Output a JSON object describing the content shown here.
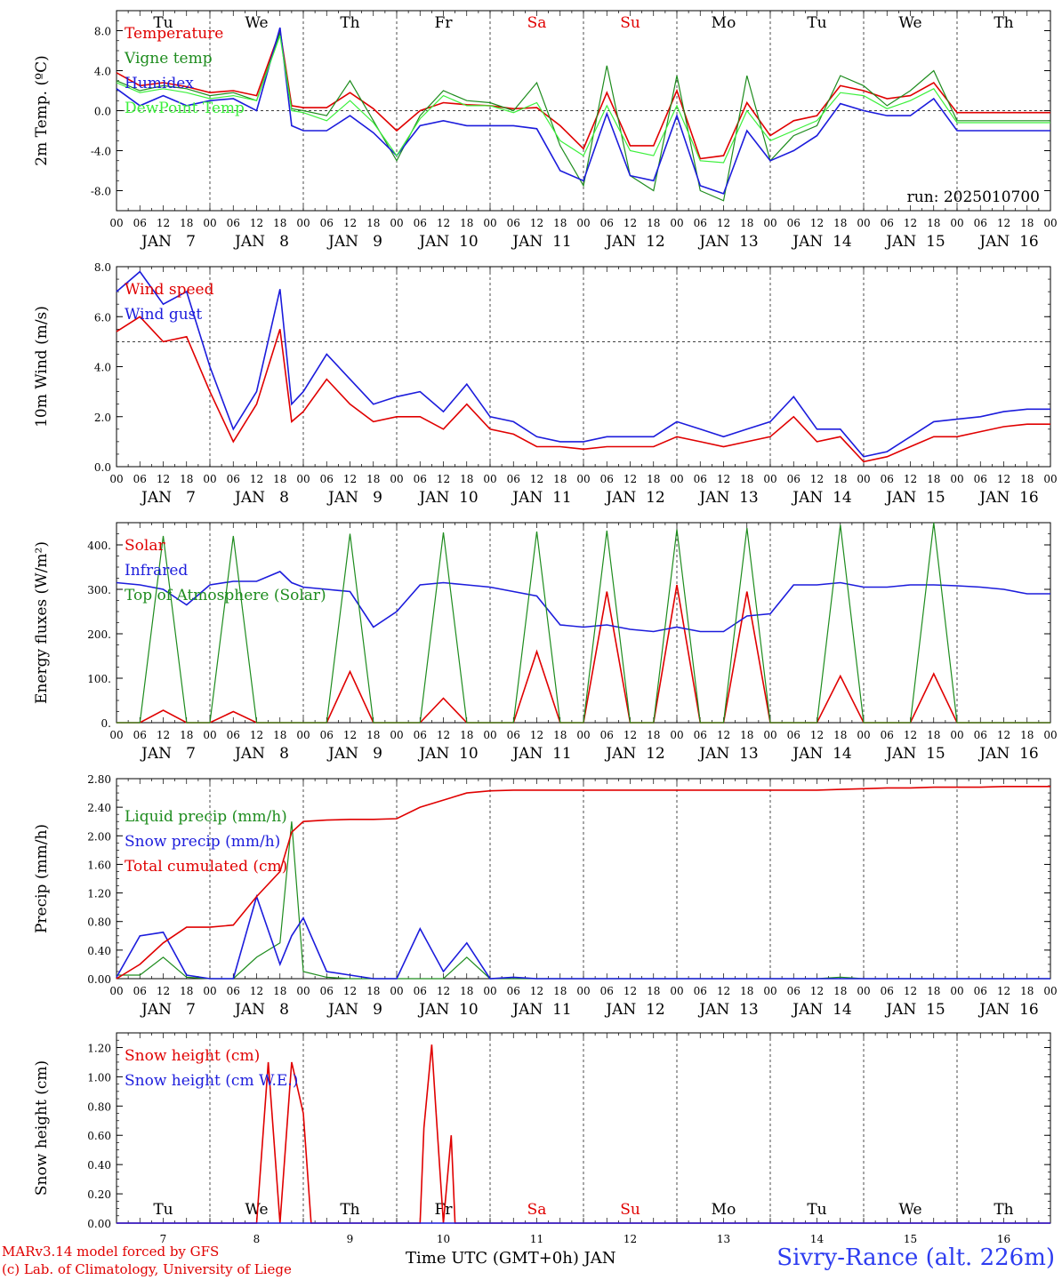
{
  "footer": {
    "model": "MARv3.14 model forced by GFS",
    "copyright": "(c) Lab. of Climatology, University of Liege",
    "xlabel": "Time UTC (GMT+0h) JAN",
    "site": "Sivry-Rance (alt. 226m)"
  },
  "run_label": "run: 2025010700",
  "days_top": [
    "Tu",
    "We",
    "Th",
    "Fr",
    "Sa",
    "Su",
    "Mo",
    "Tu",
    "We",
    "Th"
  ],
  "weekend_days": [
    "Sa",
    "Su"
  ],
  "dates_bottom": [
    "7",
    "8",
    "9",
    "10",
    "11",
    "12",
    "13",
    "14",
    "15",
    "16"
  ],
  "date_labels": [
    "JAN   7",
    "JAN   8",
    "JAN   9",
    "JAN  10",
    "JAN  11",
    "JAN  12",
    "JAN  13",
    "JAN  14",
    "JAN  15",
    "JAN  16"
  ],
  "hour_labels": [
    "00",
    "06",
    "12",
    "18"
  ],
  "colors": {
    "red": "#e00000",
    "green": "#1e8c1e",
    "blue": "#1c1cdc",
    "lightgreen": "#3cf03c",
    "weekend": "#e00000"
  },
  "chart_data": [
    {
      "type": "line",
      "ylabel": "2m Temp. (ºC)",
      "ylim": [
        -10,
        10
      ],
      "yticks": [
        "8.0",
        "4.0",
        "0.0",
        "-4.0",
        "-8.0"
      ],
      "ytick_values": [
        8,
        4,
        0,
        -4,
        -8
      ],
      "ref_line": 0,
      "x_hours_from_jan7_00": [
        0,
        6,
        12,
        18,
        24,
        30,
        36,
        42,
        45,
        48,
        54,
        60,
        66,
        72,
        78,
        84,
        90,
        96,
        102,
        108,
        114,
        120,
        126,
        132,
        138,
        144,
        150,
        156,
        162,
        168,
        174,
        180,
        186,
        192,
        198,
        204,
        210,
        216,
        222,
        228,
        234,
        240
      ],
      "series": [
        {
          "name": "Temperature",
          "color": "red",
          "values": [
            3.8,
            2.5,
            2.8,
            2.4,
            1.8,
            2.0,
            1.5,
            8.0,
            0.5,
            0.3,
            0.3,
            1.8,
            0.2,
            -2.0,
            0.0,
            0.8,
            0.6,
            0.5,
            0.2,
            0.3,
            -1.5,
            -3.8,
            1.8,
            -3.5,
            -3.5,
            2.0,
            -4.8,
            -4.5,
            0.8,
            -2.5,
            -1.0,
            -0.5,
            2.5,
            2.0,
            1.2,
            1.5,
            2.8,
            -0.2,
            -0.2,
            -0.2,
            -0.2,
            -0.2
          ]
        },
        {
          "name": "Vigne temp",
          "color": "green",
          "values": [
            3.0,
            2.0,
            2.5,
            2.2,
            1.5,
            1.8,
            1.0,
            7.8,
            0.2,
            0.0,
            -0.5,
            3.0,
            -1.0,
            -5.0,
            -0.5,
            2.0,
            1.0,
            0.8,
            0.0,
            2.8,
            -3.5,
            -7.5,
            4.5,
            -6.5,
            -8.0,
            3.5,
            -8.0,
            -9.0,
            3.5,
            -5.0,
            -2.5,
            -1.5,
            3.5,
            2.5,
            0.5,
            2.0,
            4.0,
            -1.0,
            -1.0,
            -1.0,
            -1.0,
            -1.0
          ]
        },
        {
          "name": "Humidex",
          "color": "blue",
          "values": [
            2.2,
            0.5,
            1.5,
            0.5,
            1.0,
            1.2,
            0.0,
            8.3,
            -1.5,
            -2.0,
            -2.0,
            -0.5,
            -2.2,
            -4.5,
            -1.5,
            -1.0,
            -1.5,
            -1.5,
            -1.5,
            -1.8,
            -6.0,
            -7.0,
            -0.3,
            -6.5,
            -7.0,
            -0.5,
            -7.5,
            -8.3,
            -2.0,
            -5.0,
            -4.0,
            -2.5,
            0.7,
            0.0,
            -0.5,
            -0.5,
            1.2,
            -2.0,
            -2.0,
            -2.0,
            -2.0,
            -2.0
          ]
        },
        {
          "name": "DewPoint Temp",
          "color": "lightgreen",
          "values": [
            2.8,
            1.8,
            2.2,
            1.8,
            1.2,
            1.5,
            1.0,
            7.5,
            0.0,
            -0.2,
            -1.0,
            1.0,
            -1.2,
            -4.5,
            -0.8,
            1.5,
            0.5,
            0.5,
            -0.2,
            0.8,
            -3.0,
            -4.5,
            0.5,
            -4.0,
            -4.5,
            0.5,
            -5.0,
            -5.2,
            0.0,
            -3.0,
            -2.0,
            -1.0,
            1.8,
            1.5,
            0.2,
            1.0,
            2.2,
            -1.2,
            -1.2,
            -1.2,
            -1.2,
            -1.2
          ]
        }
      ]
    },
    {
      "type": "line",
      "ylabel": "10m Wind (m/s)",
      "ylim": [
        0,
        8
      ],
      "yticks": [
        "8.0",
        "6.0",
        "4.0",
        "2.0",
        "0.0"
      ],
      "ytick_values": [
        8,
        6,
        4,
        2,
        0
      ],
      "ref_line": 5,
      "x_hours_from_jan7_00": [
        0,
        6,
        12,
        18,
        24,
        30,
        36,
        42,
        45,
        48,
        54,
        60,
        66,
        72,
        78,
        84,
        90,
        96,
        102,
        108,
        114,
        120,
        126,
        132,
        138,
        144,
        150,
        156,
        162,
        168,
        174,
        180,
        186,
        192,
        198,
        204,
        210,
        216,
        222,
        228,
        234,
        240
      ],
      "series": [
        {
          "name": "Wind speed",
          "color": "red",
          "values": [
            5.4,
            6.0,
            5.0,
            5.2,
            3.0,
            1.0,
            2.5,
            5.5,
            1.8,
            2.2,
            3.5,
            2.5,
            1.8,
            2.0,
            2.0,
            1.5,
            2.5,
            1.5,
            1.3,
            0.8,
            0.8,
            0.7,
            0.8,
            0.8,
            0.8,
            1.2,
            1.0,
            0.8,
            1.0,
            1.2,
            2.0,
            1.0,
            1.2,
            0.2,
            0.4,
            0.8,
            1.2,
            1.2,
            1.4,
            1.6,
            1.7,
            1.7
          ]
        },
        {
          "name": "Wind gust",
          "color": "blue",
          "values": [
            7.0,
            7.8,
            6.5,
            7.0,
            4.0,
            1.5,
            3.0,
            7.1,
            2.5,
            3.0,
            4.5,
            3.5,
            2.5,
            2.8,
            3.0,
            2.2,
            3.3,
            2.0,
            1.8,
            1.2,
            1.0,
            1.0,
            1.2,
            1.2,
            1.2,
            1.8,
            1.5,
            1.2,
            1.5,
            1.8,
            2.8,
            1.5,
            1.5,
            0.4,
            0.6,
            1.2,
            1.8,
            1.9,
            2.0,
            2.2,
            2.3,
            2.3
          ]
        }
      ]
    },
    {
      "type": "line",
      "ylabel": "Energy fluxes (W/m²)",
      "ylim": [
        0,
        450
      ],
      "yticks": [
        "400.",
        "300.",
        "200.",
        "100.",
        "0."
      ],
      "ytick_values": [
        400,
        300,
        200,
        100,
        0
      ],
      "ref_line": null,
      "x_hours_from_jan7_00": [
        0,
        6,
        12,
        18,
        24,
        30,
        36,
        42,
        45,
        48,
        54,
        60,
        66,
        72,
        78,
        84,
        90,
        96,
        102,
        108,
        114,
        120,
        126,
        132,
        138,
        144,
        150,
        156,
        162,
        168,
        174,
        180,
        186,
        192,
        198,
        204,
        210,
        216,
        222,
        228,
        234,
        240
      ],
      "series": [
        {
          "name": "Solar",
          "color": "red",
          "values": [
            0,
            0,
            28,
            0,
            0,
            25,
            0,
            0,
            0,
            0,
            0,
            115,
            0,
            0,
            0,
            55,
            0,
            0,
            0,
            160,
            0,
            0,
            295,
            0,
            0,
            310,
            0,
            0,
            295,
            0,
            0,
            0,
            105,
            0,
            0,
            0,
            110,
            0,
            0,
            0,
            0,
            0
          ]
        },
        {
          "name": "Infrared",
          "color": "blue",
          "values": [
            315,
            310,
            300,
            265,
            310,
            318,
            318,
            340,
            315,
            305,
            300,
            295,
            215,
            250,
            310,
            315,
            310,
            305,
            295,
            285,
            220,
            215,
            220,
            210,
            205,
            215,
            205,
            205,
            240,
            245,
            310,
            310,
            315,
            305,
            305,
            310,
            310,
            308,
            305,
            300,
            290,
            290
          ]
        },
        {
          "name": "Top of Atmosphere (Solar)",
          "color": "green",
          "values": [
            0,
            0,
            420,
            0,
            0,
            420,
            0,
            0,
            0,
            0,
            0,
            425,
            0,
            0,
            0,
            428,
            0,
            0,
            0,
            430,
            0,
            0,
            432,
            0,
            0,
            435,
            0,
            0,
            438,
            0,
            0,
            0,
            445,
            0,
            0,
            0,
            450,
            0,
            0,
            0,
            0,
            0
          ]
        }
      ]
    },
    {
      "type": "line",
      "ylabel": "Precip (mm/h)",
      "ylim": [
        0,
        2.8
      ],
      "yticks": [
        "2.80",
        "2.40",
        "2.00",
        "1.60",
        "1.20",
        "0.80",
        "0.40",
        "0.00"
      ],
      "ytick_values": [
        2.8,
        2.4,
        2.0,
        1.6,
        1.2,
        0.8,
        0.4,
        0.0
      ],
      "ref_line": null,
      "x_hours_from_jan7_00": [
        0,
        6,
        12,
        18,
        24,
        30,
        36,
        42,
        45,
        48,
        54,
        60,
        66,
        72,
        78,
        84,
        90,
        96,
        102,
        108,
        114,
        120,
        126,
        132,
        138,
        144,
        150,
        156,
        162,
        168,
        174,
        180,
        186,
        192,
        198,
        204,
        210,
        216,
        222,
        228,
        234,
        240
      ],
      "series": [
        {
          "name": "Liquid precip (mm/h)",
          "color": "green",
          "values": [
            0.05,
            0.05,
            0.3,
            0.02,
            0,
            0,
            0.3,
            0.5,
            2.2,
            0.1,
            0.02,
            0,
            0,
            0,
            0,
            0,
            0.3,
            0,
            0,
            0,
            0,
            0,
            0,
            0,
            0,
            0,
            0,
            0,
            0,
            0,
            0,
            0,
            0.02,
            0,
            0,
            0,
            0,
            0,
            0,
            0,
            0,
            0
          ]
        },
        {
          "name": "Snow precip (mm/h)",
          "color": "blue",
          "values": [
            0.02,
            0.6,
            0.65,
            0.05,
            0,
            0,
            1.15,
            0.2,
            0.6,
            0.85,
            0.1,
            0.05,
            0,
            0,
            0.7,
            0.1,
            0.5,
            0,
            0.02,
            0,
            0,
            0,
            0,
            0,
            0,
            0,
            0,
            0,
            0,
            0,
            0,
            0,
            0,
            0,
            0,
            0,
            0,
            0,
            0,
            0,
            0,
            0
          ]
        },
        {
          "name": "Total cumulated (cm)",
          "color": "red",
          "values": [
            0.0,
            0.2,
            0.5,
            0.72,
            0.72,
            0.75,
            1.15,
            1.5,
            2.05,
            2.2,
            2.22,
            2.23,
            2.23,
            2.24,
            2.4,
            2.5,
            2.6,
            2.63,
            2.64,
            2.64,
            2.64,
            2.64,
            2.64,
            2.64,
            2.64,
            2.64,
            2.64,
            2.64,
            2.64,
            2.64,
            2.64,
            2.64,
            2.65,
            2.66,
            2.67,
            2.67,
            2.68,
            2.68,
            2.68,
            2.69,
            2.69,
            2.69
          ]
        }
      ]
    },
    {
      "type": "line",
      "ylabel": "Snow height (cm)",
      "ylim": [
        0,
        1.3
      ],
      "yticks": [
        "1.20",
        "1.00",
        "0.80",
        "0.60",
        "0.40",
        "0.20",
        "0.00"
      ],
      "ytick_values": [
        1.2,
        1.0,
        0.8,
        0.6,
        0.4,
        0.2,
        0.0
      ],
      "ref_line": null,
      "x_hours_from_jan7_00": [
        0,
        6,
        12,
        18,
        24,
        30,
        36,
        39,
        42,
        45,
        48,
        50,
        54,
        60,
        66,
        72,
        78,
        79,
        81,
        82,
        84,
        86,
        87,
        88,
        90,
        96,
        102,
        108,
        114,
        120,
        126,
        132,
        138,
        144,
        150,
        156,
        162,
        168,
        174,
        180,
        186,
        240
      ],
      "series": [
        {
          "name": "Snow height (cm)",
          "color": "red",
          "values": [
            0,
            0,
            0,
            0,
            0,
            0,
            0,
            1.1,
            0,
            1.1,
            0.75,
            0,
            0,
            0,
            0,
            0,
            0,
            0.65,
            1.22,
            0.8,
            0,
            0.6,
            0,
            0,
            0,
            0,
            0,
            0,
            0,
            0,
            0,
            0,
            0,
            0,
            0,
            0,
            0,
            0,
            0,
            0,
            0,
            0
          ]
        },
        {
          "name": "Snow height (cm W.E.)",
          "color": "blue",
          "values": [
            0,
            0,
            0,
            0,
            0,
            0,
            0,
            0,
            0,
            0,
            0,
            0,
            0,
            0,
            0,
            0,
            0,
            0,
            0,
            0,
            0,
            0,
            0,
            0,
            0,
            0,
            0,
            0,
            0,
            0,
            0,
            0,
            0,
            0,
            0,
            0,
            0,
            0,
            0,
            0,
            0,
            0
          ]
        }
      ]
    }
  ]
}
